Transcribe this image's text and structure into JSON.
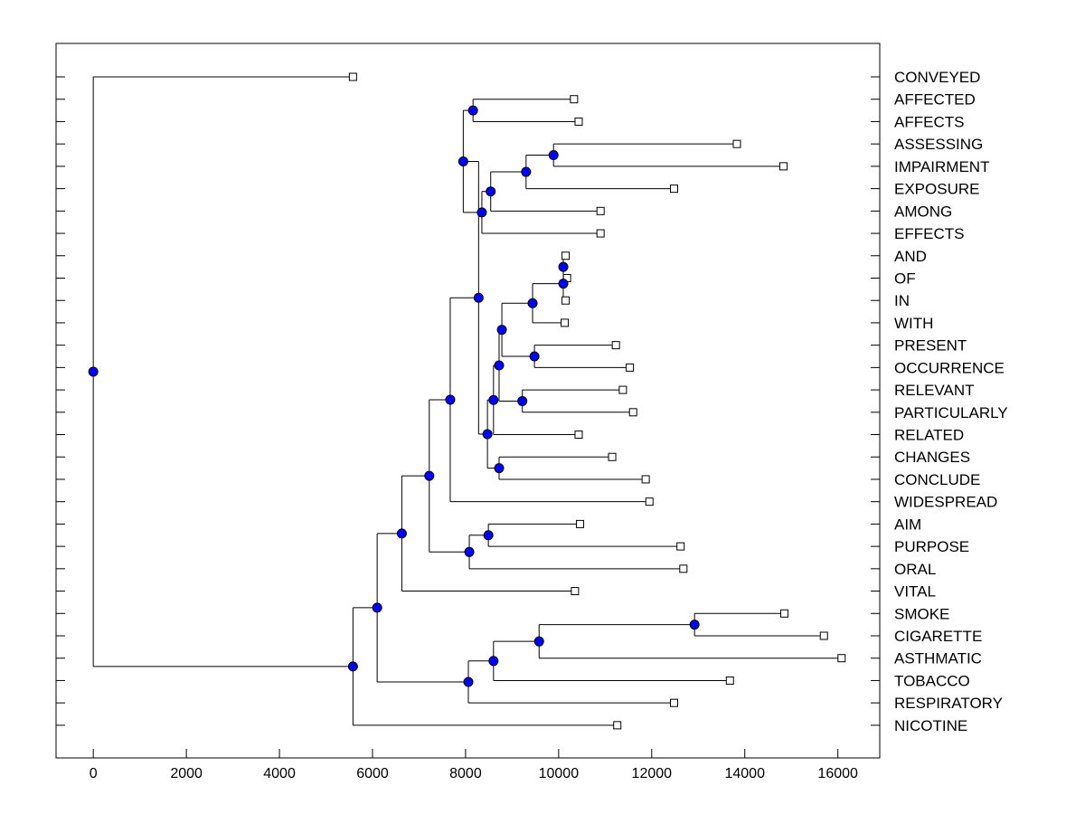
{
  "chart_data": {
    "type": "dendrogram",
    "title": "",
    "xlabel": "",
    "ylabel": "",
    "xlim": [
      -800,
      16900
    ],
    "x_ticks": [
      0,
      2000,
      4000,
      6000,
      8000,
      10000,
      12000,
      14000,
      16000
    ],
    "x_tick_labels": [
      "0",
      "2000",
      "4000",
      "6000",
      "8000",
      "10000",
      "12000",
      "14000",
      "16000"
    ],
    "leaves": [
      {
        "label": "CONVEYED",
        "x": 5580
      },
      {
        "label": "AFFECTED",
        "x": 10330
      },
      {
        "label": "AFFECTS",
        "x": 10430
      },
      {
        "label": "ASSESSING",
        "x": 13830
      },
      {
        "label": "IMPAIRMENT",
        "x": 14830
      },
      {
        "label": "EXPOSURE",
        "x": 12480
      },
      {
        "label": "AMONG",
        "x": 10900
      },
      {
        "label": "EFFECTS",
        "x": 10900
      },
      {
        "label": "AND",
        "x": 10150
      },
      {
        "label": "OF",
        "x": 10180
      },
      {
        "label": "IN",
        "x": 10150
      },
      {
        "label": "WITH",
        "x": 10130
      },
      {
        "label": "PRESENT",
        "x": 11230
      },
      {
        "label": "OCCURRENCE",
        "x": 11530
      },
      {
        "label": "RELEVANT",
        "x": 11380
      },
      {
        "label": "PARTICULARLY",
        "x": 11600
      },
      {
        "label": "RELATED",
        "x": 10430
      },
      {
        "label": "CHANGES",
        "x": 11150
      },
      {
        "label": "CONCLUDE",
        "x": 11870
      },
      {
        "label": "WIDESPREAD",
        "x": 11950
      },
      {
        "label": "AIM",
        "x": 10460
      },
      {
        "label": "PURPOSE",
        "x": 12620
      },
      {
        "label": "ORAL",
        "x": 12680
      },
      {
        "label": "VITAL",
        "x": 10350
      },
      {
        "label": "SMOKE",
        "x": 14850
      },
      {
        "label": "CIGARETTE",
        "x": 15700
      },
      {
        "label": "ASTHMATIC",
        "x": 16080
      },
      {
        "label": "TOBACCO",
        "x": 13680
      },
      {
        "label": "RESPIRATORY",
        "x": 12480
      },
      {
        "label": "NICOTINE",
        "x": 11260
      }
    ],
    "merges": [
      {
        "id": "n1",
        "x": 10100,
        "children": [
          "L8",
          "L9"
        ]
      },
      {
        "id": "n2",
        "x": 10100,
        "children": [
          "n1",
          "L10"
        ]
      },
      {
        "id": "n3",
        "x": 9440,
        "children": [
          "n2",
          "L11"
        ]
      },
      {
        "id": "n4",
        "x": 9480,
        "children": [
          "L12",
          "L13"
        ]
      },
      {
        "id": "n5",
        "x": 8780,
        "children": [
          "n3",
          "n4"
        ]
      },
      {
        "id": "n6",
        "x": 9220,
        "children": [
          "L14",
          "L15"
        ]
      },
      {
        "id": "n7",
        "x": 8720,
        "children": [
          "n5",
          "n6"
        ]
      },
      {
        "id": "n8",
        "x": 8600,
        "children": [
          "n7",
          "L16"
        ]
      },
      {
        "id": "n9",
        "x": 8720,
        "children": [
          "L17",
          "L18"
        ]
      },
      {
        "id": "n10",
        "x": 8470,
        "children": [
          "n8",
          "n9"
        ]
      },
      {
        "id": "n11",
        "x": 9890,
        "children": [
          "L3",
          "L4"
        ]
      },
      {
        "id": "n12",
        "x": 9300,
        "children": [
          "n11",
          "L5"
        ]
      },
      {
        "id": "n13",
        "x": 8540,
        "children": [
          "n12",
          "L6"
        ]
      },
      {
        "id": "n14",
        "x": 8350,
        "children": [
          "n13",
          "L7"
        ]
      },
      {
        "id": "n15",
        "x": 8160,
        "children": [
          "L1",
          "L2"
        ]
      },
      {
        "id": "n16",
        "x": 7950,
        "children": [
          "n15",
          "n14"
        ]
      },
      {
        "id": "n17",
        "x": 8280,
        "children": [
          "n16",
          "n10"
        ]
      },
      {
        "id": "n18",
        "x": 7670,
        "children": [
          "n17",
          "L19"
        ]
      },
      {
        "id": "n19",
        "x": 8490,
        "children": [
          "L20",
          "L21"
        ]
      },
      {
        "id": "n20",
        "x": 8080,
        "children": [
          "n19",
          "L22"
        ]
      },
      {
        "id": "n21",
        "x": 7220,
        "children": [
          "n18",
          "n20"
        ]
      },
      {
        "id": "n22",
        "x": 6630,
        "children": [
          "n21",
          "L23"
        ]
      },
      {
        "id": "n23",
        "x": 12920,
        "children": [
          "L24",
          "L25"
        ]
      },
      {
        "id": "n24",
        "x": 9580,
        "children": [
          "n23",
          "L26"
        ]
      },
      {
        "id": "n25",
        "x": 8600,
        "children": [
          "n24",
          "L27"
        ]
      },
      {
        "id": "n26",
        "x": 8060,
        "children": [
          "n25",
          "L28"
        ]
      },
      {
        "id": "n27",
        "x": 6100,
        "children": [
          "n22",
          "n26"
        ]
      },
      {
        "id": "n28",
        "x": 5580,
        "children": [
          "n27",
          "L29"
        ]
      },
      {
        "id": "n29",
        "x": 0,
        "children": [
          "L0",
          "n28"
        ]
      }
    ],
    "colors": {
      "axis": "#000000",
      "line": "#000000",
      "node_fill": "#0000ff",
      "node_stroke": "#000000",
      "leaf_fill": "#ffffff"
    }
  }
}
